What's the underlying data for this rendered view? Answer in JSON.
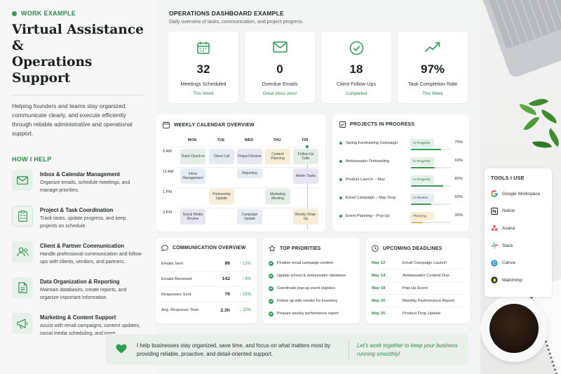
{
  "hero": {
    "eyebrow": "WORK EXAMPLE",
    "title_line1": "Virtual Assistance &",
    "title_line2": "Operations Support",
    "description": "Helping founders and teams stay organized, communicate clearly, and execute efficiently through reliable administrative and operational support."
  },
  "how_i_help": {
    "heading": "HOW I HELP",
    "items": [
      {
        "icon": "mail-icon",
        "title": "Inbox & Calendar Management",
        "desc": "Organize emails, schedule meetings, and manage priorities."
      },
      {
        "icon": "clipboard-checklist-icon",
        "title": "Project & Task Coordination",
        "desc": "Track tasks, update progress, and keep projects on schedule."
      },
      {
        "icon": "people-icon",
        "title": "Client & Partner Communication",
        "desc": "Handle professional communication and follow-ups with clients, vendors, and partners."
      },
      {
        "icon": "document-icon",
        "title": "Data Organization & Reporting",
        "desc": "Maintain databases, create reports, and organize important information."
      },
      {
        "icon": "megaphone-icon",
        "title": "Marketing & Content Support",
        "desc": "Assist with email campaigns, content updates, social media scheduling, and more."
      }
    ]
  },
  "dashboard": {
    "title": "OPERATIONS DASHBOARD EXAMPLE",
    "subtitle": "Daily overview of tasks, communication, and project progress."
  },
  "stats": [
    {
      "icon": "calendar-icon",
      "value": "32",
      "label": "Meetings Scheduled",
      "foot": "This Week"
    },
    {
      "icon": "mail-icon",
      "value": "0",
      "label": "Overdue Emails",
      "foot": "Great inbox zero!"
    },
    {
      "icon": "check-circle-icon",
      "value": "18",
      "label": "Client Follow-Ups",
      "foot": "Completed"
    },
    {
      "icon": "trend-up-icon",
      "value": "97%",
      "label": "Task Completion Rate",
      "foot": "This Week"
    }
  ],
  "calendar": {
    "title": "WEEKLY CALENDAR OVERVIEW",
    "days": [
      "MON",
      "TUE",
      "WED",
      "THU",
      "FRI"
    ],
    "times": [
      "9 AM",
      "11 AM",
      "1 PM",
      "3 PM"
    ],
    "events": [
      {
        "text": "Team Check-in",
        "color": "green"
      },
      {
        "text": "Client Call",
        "color": "blue"
      },
      {
        "text": "Project Review",
        "color": "purple"
      },
      {
        "text": "Content Planning",
        "color": "orange"
      },
      {
        "text": "Follow-Up Calls",
        "color": "green"
      },
      {
        "text": "Inbox Management",
        "color": "blue"
      },
      {
        "text": "Reporting",
        "color": "blue"
      },
      {
        "text": "Admin Tasks",
        "color": "purple"
      },
      {
        "text": "Partnership Update",
        "color": "orange"
      },
      {
        "text": "Marketing Meeting",
        "color": "green"
      },
      {
        "text": "Social Media Review",
        "color": "purple"
      },
      {
        "text": "Campaign Update",
        "color": "blue"
      },
      {
        "text": "Weekly Wrap-Up",
        "color": "orange"
      }
    ]
  },
  "projects": {
    "title": "PROJECTS IN PROGRESS",
    "items": [
      {
        "name": "Spring Fundraising Campaign",
        "status": "In Progress",
        "pct": "75%",
        "progress": 0.75
      },
      {
        "name": "Ambassador Onboarding",
        "status": "In Progress",
        "pct": "60%",
        "progress": 0.6
      },
      {
        "name": "Product Launch – May",
        "status": "In Progress",
        "pct": "80%",
        "progress": 0.8
      },
      {
        "name": "Email Campaign – May Drop",
        "status": "In Review",
        "pct": "50%",
        "progress": 0.5
      },
      {
        "name": "Event Planning – Pop Up",
        "status": "Planning",
        "pct": "30%",
        "progress": 0.3
      }
    ]
  },
  "communication": {
    "title": "COMMUNICATION OVERVIEW",
    "rows": [
      {
        "label": "Emails Sent",
        "value": "86",
        "delta": "↑ 12%"
      },
      {
        "label": "Emails Received",
        "value": "142",
        "delta": "↑ 8%"
      },
      {
        "label": "Responses Sent",
        "value": "76",
        "delta": "↑ 15%"
      },
      {
        "label": "Avg. Response Time",
        "value": "2.3h",
        "delta": "↓ 20%"
      }
    ]
  },
  "priorities": {
    "title": "TOP PRIORITIES",
    "items": [
      "Finalize email campaign content",
      "Update school & ambassador database",
      "Coordinate pop-up event logistics",
      "Follow up with vendor for inventory",
      "Prepare weekly performance report"
    ]
  },
  "deadlines": {
    "title": "UPCOMING DEADLINES",
    "items": [
      {
        "date": "May 12",
        "task": "Email Campaign Launch"
      },
      {
        "date": "May 14",
        "task": "Ambassador Content Due"
      },
      {
        "date": "May 18",
        "task": "Pop-Up Event"
      },
      {
        "date": "May 20",
        "task": "Monthly Performance Report"
      },
      {
        "date": "May 25",
        "task": "Product Drop Update"
      }
    ]
  },
  "banner": {
    "text": "I help businesses stay organized, save time, and focus on what matters most by providing reliable, proactive, and detail-oriented support.",
    "cta": "Let’s work together to keep your business running smoothly!"
  },
  "tools": {
    "title": "TOOLS I USE",
    "items": [
      {
        "name": "Google Workspace",
        "icon": "google-icon"
      },
      {
        "name": "Notion",
        "icon": "notion-icon"
      },
      {
        "name": "Asana",
        "icon": "asana-icon"
      },
      {
        "name": "Slack",
        "icon": "slack-icon"
      },
      {
        "name": "Canva",
        "icon": "canva-icon"
      },
      {
        "name": "Mailchimp",
        "icon": "mailchimp-icon"
      }
    ]
  },
  "colors": {
    "accent": "#2e9b4f",
    "background": "#f3f4f4",
    "card": "#ffffff"
  }
}
